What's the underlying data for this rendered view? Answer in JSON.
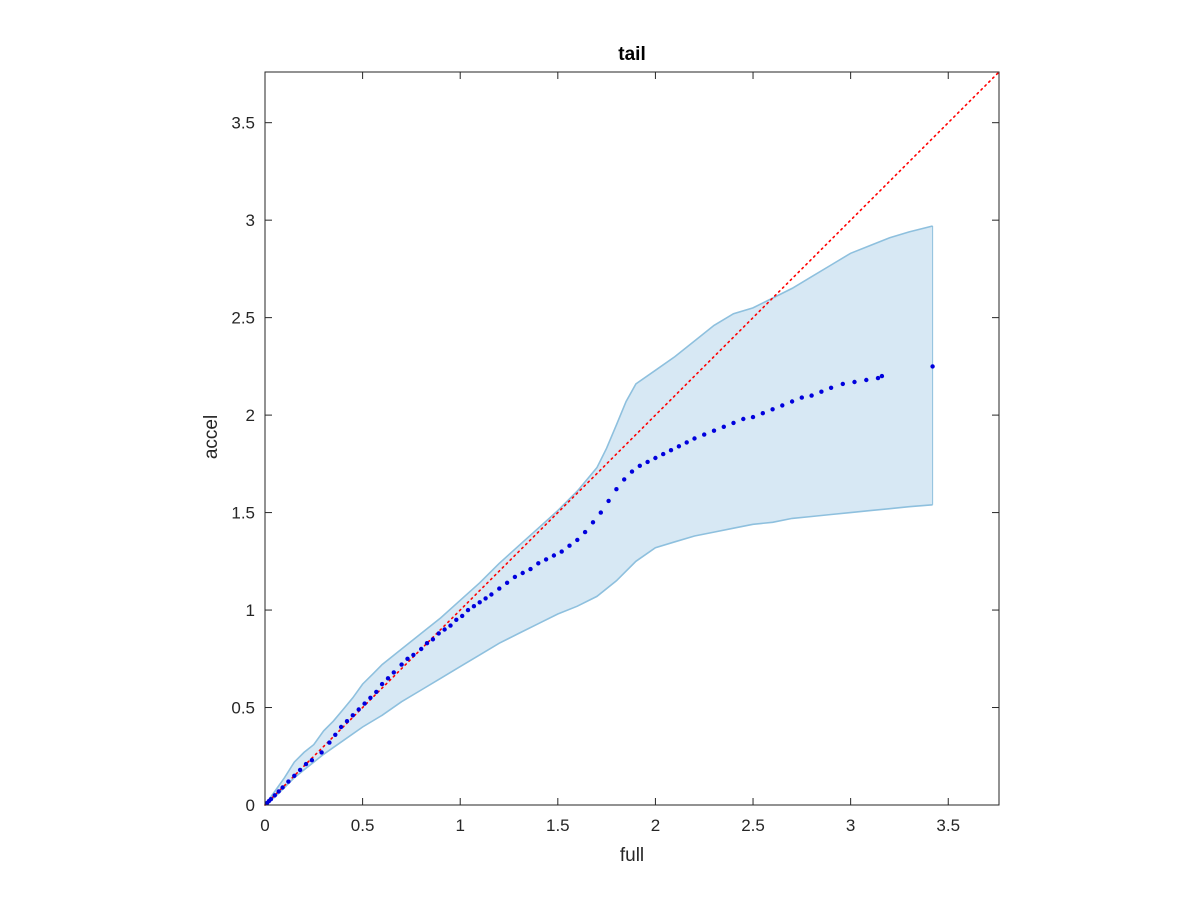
{
  "chart_data": {
    "type": "scatter",
    "title": "tail",
    "xlabel": "full",
    "ylabel": "accel",
    "xlim": [
      0,
      3.76
    ],
    "ylim": [
      0,
      3.76
    ],
    "xticks": [
      0,
      0.5,
      1,
      1.5,
      2,
      2.5,
      3,
      3.5
    ],
    "xtick_labels": [
      "0",
      "0.5",
      "1",
      "1.5",
      "2",
      "2.5",
      "3",
      "3.5"
    ],
    "yticks": [
      0,
      0.5,
      1,
      1.5,
      2,
      2.5,
      3,
      3.5
    ],
    "ytick_labels": [
      "0",
      "0.5",
      "1",
      "1.5",
      "2",
      "2.5",
      "3",
      "3.5"
    ],
    "grid": false,
    "colors": {
      "points": "#0000dd",
      "band_fill": "#d7e8f4",
      "band_edge": "#8ec0de",
      "reference_line": "#ff0000",
      "axes": "#262626"
    },
    "reference_line": {
      "style": "dotted",
      "x": [
        0,
        3.76
      ],
      "y": [
        0,
        3.76
      ]
    },
    "band": {
      "upper": [
        [
          0,
          0
        ],
        [
          0.05,
          0.07
        ],
        [
          0.1,
          0.14
        ],
        [
          0.15,
          0.22
        ],
        [
          0.2,
          0.27
        ],
        [
          0.25,
          0.31
        ],
        [
          0.3,
          0.38
        ],
        [
          0.35,
          0.43
        ],
        [
          0.4,
          0.49
        ],
        [
          0.45,
          0.55
        ],
        [
          0.5,
          0.62
        ],
        [
          0.55,
          0.67
        ],
        [
          0.6,
          0.72
        ],
        [
          0.7,
          0.8
        ],
        [
          0.8,
          0.88
        ],
        [
          0.9,
          0.96
        ],
        [
          1.0,
          1.05
        ],
        [
          1.1,
          1.14
        ],
        [
          1.2,
          1.24
        ],
        [
          1.3,
          1.33
        ],
        [
          1.4,
          1.42
        ],
        [
          1.5,
          1.51
        ],
        [
          1.6,
          1.61
        ],
        [
          1.7,
          1.73
        ],
        [
          1.75,
          1.83
        ],
        [
          1.8,
          1.95
        ],
        [
          1.85,
          2.07
        ],
        [
          1.9,
          2.16
        ],
        [
          2.0,
          2.23
        ],
        [
          2.1,
          2.3
        ],
        [
          2.2,
          2.38
        ],
        [
          2.3,
          2.46
        ],
        [
          2.4,
          2.52
        ],
        [
          2.5,
          2.55
        ],
        [
          2.6,
          2.6
        ],
        [
          2.7,
          2.65
        ],
        [
          2.8,
          2.71
        ],
        [
          2.9,
          2.77
        ],
        [
          3.0,
          2.83
        ],
        [
          3.1,
          2.87
        ],
        [
          3.2,
          2.91
        ],
        [
          3.3,
          2.94
        ],
        [
          3.42,
          2.97
        ]
      ],
      "lower": [
        [
          0,
          0
        ],
        [
          0.05,
          0.04
        ],
        [
          0.1,
          0.09
        ],
        [
          0.15,
          0.14
        ],
        [
          0.2,
          0.18
        ],
        [
          0.25,
          0.22
        ],
        [
          0.3,
          0.26
        ],
        [
          0.4,
          0.33
        ],
        [
          0.5,
          0.4
        ],
        [
          0.6,
          0.46
        ],
        [
          0.7,
          0.53
        ],
        [
          0.8,
          0.59
        ],
        [
          0.9,
          0.65
        ],
        [
          1.0,
          0.71
        ],
        [
          1.1,
          0.77
        ],
        [
          1.2,
          0.83
        ],
        [
          1.3,
          0.88
        ],
        [
          1.4,
          0.93
        ],
        [
          1.5,
          0.98
        ],
        [
          1.6,
          1.02
        ],
        [
          1.7,
          1.07
        ],
        [
          1.8,
          1.15
        ],
        [
          1.9,
          1.25
        ],
        [
          2.0,
          1.32
        ],
        [
          2.1,
          1.35
        ],
        [
          2.2,
          1.38
        ],
        [
          2.3,
          1.4
        ],
        [
          2.4,
          1.42
        ],
        [
          2.5,
          1.44
        ],
        [
          2.6,
          1.45
        ],
        [
          2.7,
          1.47
        ],
        [
          2.8,
          1.48
        ],
        [
          2.9,
          1.49
        ],
        [
          3.0,
          1.5
        ],
        [
          3.1,
          1.51
        ],
        [
          3.2,
          1.52
        ],
        [
          3.3,
          1.53
        ],
        [
          3.42,
          1.54
        ]
      ]
    },
    "series": [
      {
        "points": [
          [
            0.01,
            0.01
          ],
          [
            0.02,
            0.02
          ],
          [
            0.03,
            0.03
          ],
          [
            0.05,
            0.05
          ],
          [
            0.07,
            0.07
          ],
          [
            0.09,
            0.09
          ],
          [
            0.12,
            0.12
          ],
          [
            0.15,
            0.15
          ],
          [
            0.18,
            0.18
          ],
          [
            0.21,
            0.21
          ],
          [
            0.24,
            0.23
          ],
          [
            0.29,
            0.27
          ],
          [
            0.33,
            0.32
          ],
          [
            0.36,
            0.36
          ],
          [
            0.39,
            0.4
          ],
          [
            0.42,
            0.43
          ],
          [
            0.45,
            0.46
          ],
          [
            0.48,
            0.49
          ],
          [
            0.51,
            0.52
          ],
          [
            0.54,
            0.55
          ],
          [
            0.57,
            0.58
          ],
          [
            0.6,
            0.62
          ],
          [
            0.63,
            0.65
          ],
          [
            0.66,
            0.68
          ],
          [
            0.7,
            0.72
          ],
          [
            0.73,
            0.75
          ],
          [
            0.76,
            0.77
          ],
          [
            0.8,
            0.8
          ],
          [
            0.83,
            0.83
          ],
          [
            0.86,
            0.85
          ],
          [
            0.89,
            0.88
          ],
          [
            0.92,
            0.9
          ],
          [
            0.95,
            0.92
          ],
          [
            0.98,
            0.95
          ],
          [
            1.01,
            0.97
          ],
          [
            1.04,
            1.0
          ],
          [
            1.07,
            1.02
          ],
          [
            1.1,
            1.04
          ],
          [
            1.13,
            1.06
          ],
          [
            1.16,
            1.08
          ],
          [
            1.2,
            1.11
          ],
          [
            1.24,
            1.14
          ],
          [
            1.28,
            1.17
          ],
          [
            1.32,
            1.19
          ],
          [
            1.36,
            1.21
          ],
          [
            1.4,
            1.24
          ],
          [
            1.44,
            1.26
          ],
          [
            1.48,
            1.28
          ],
          [
            1.52,
            1.3
          ],
          [
            1.56,
            1.33
          ],
          [
            1.6,
            1.36
          ],
          [
            1.64,
            1.4
          ],
          [
            1.68,
            1.45
          ],
          [
            1.72,
            1.5
          ],
          [
            1.76,
            1.56
          ],
          [
            1.8,
            1.62
          ],
          [
            1.84,
            1.67
          ],
          [
            1.88,
            1.71
          ],
          [
            1.92,
            1.74
          ],
          [
            1.96,
            1.76
          ],
          [
            2.0,
            1.78
          ],
          [
            2.04,
            1.8
          ],
          [
            2.08,
            1.82
          ],
          [
            2.12,
            1.84
          ],
          [
            2.16,
            1.86
          ],
          [
            2.2,
            1.88
          ],
          [
            2.25,
            1.9
          ],
          [
            2.3,
            1.92
          ],
          [
            2.35,
            1.94
          ],
          [
            2.4,
            1.96
          ],
          [
            2.45,
            1.98
          ],
          [
            2.5,
            1.99
          ],
          [
            2.55,
            2.01
          ],
          [
            2.6,
            2.03
          ],
          [
            2.65,
            2.05
          ],
          [
            2.7,
            2.07
          ],
          [
            2.75,
            2.09
          ],
          [
            2.8,
            2.1
          ],
          [
            2.85,
            2.12
          ],
          [
            2.9,
            2.14
          ],
          [
            2.96,
            2.16
          ],
          [
            3.02,
            2.17
          ],
          [
            3.08,
            2.18
          ],
          [
            3.14,
            2.19
          ],
          [
            3.16,
            2.2
          ],
          [
            3.42,
            2.25
          ]
        ]
      }
    ]
  }
}
